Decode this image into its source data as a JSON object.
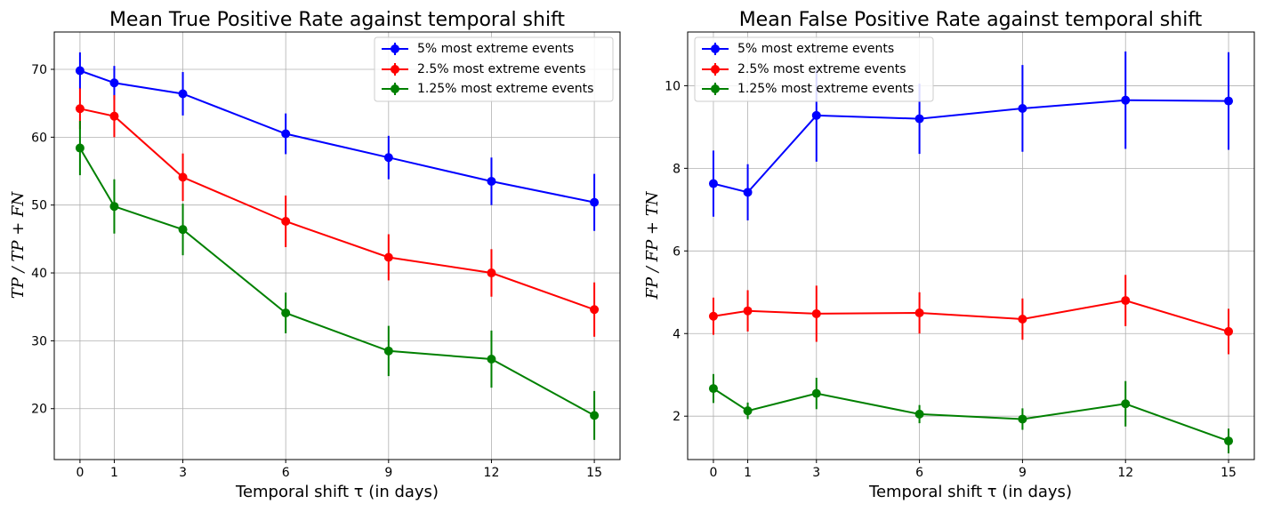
{
  "chart_data": [
    {
      "type": "line",
      "title": "Mean True Positive Rate against temporal shift",
      "xlabel": "Temporal shift τ (in days)",
      "ylabel": "TP / TP + FN",
      "x": [
        0,
        1,
        3,
        6,
        9,
        12,
        15
      ],
      "x_ticks": [
        "0",
        "1",
        "3",
        "6",
        "9",
        "12",
        "15"
      ],
      "xlim": [
        -0.75,
        15.75
      ],
      "ylim": [
        12.5,
        75.5
      ],
      "y_ticks": [
        20,
        30,
        40,
        50,
        60,
        70
      ],
      "grid": true,
      "legend": "top-right",
      "series": [
        {
          "name": "5% most extreme events",
          "color": "#0000ff",
          "values": [
            69.8,
            68.0,
            66.4,
            60.5,
            57.0,
            53.5,
            50.4
          ],
          "errors": [
            2.7,
            2.5,
            3.2,
            3.0,
            3.2,
            3.5,
            4.2
          ]
        },
        {
          "name": "2.5% most extreme events",
          "color": "#ff0000",
          "values": [
            64.2,
            63.1,
            54.1,
            47.6,
            42.3,
            40.0,
            34.6
          ],
          "errors": [
            3.0,
            3.1,
            3.5,
            3.8,
            3.4,
            3.5,
            4.0
          ]
        },
        {
          "name": "1.25% most extreme events",
          "color": "#008000",
          "values": [
            58.4,
            49.8,
            46.4,
            34.1,
            28.5,
            27.3,
            19.0
          ],
          "errors": [
            4.0,
            4.0,
            3.8,
            3.0,
            3.7,
            4.2,
            3.6
          ]
        }
      ]
    },
    {
      "type": "line",
      "title": "Mean False Positive Rate against temporal shift",
      "xlabel": "Temporal shift τ (in days)",
      "ylabel": "FP / FP + TN",
      "x": [
        0,
        1,
        3,
        6,
        9,
        12,
        15
      ],
      "x_ticks": [
        "0",
        "1",
        "3",
        "6",
        "9",
        "12",
        "15"
      ],
      "xlim": [
        -0.75,
        15.75
      ],
      "ylim": [
        0.95,
        11.3
      ],
      "y_ticks": [
        2,
        4,
        6,
        8,
        10
      ],
      "grid": true,
      "legend": "top-left",
      "series": [
        {
          "name": "5% most extreme events",
          "color": "#0000ff",
          "values": [
            7.63,
            7.42,
            9.28,
            9.2,
            9.45,
            9.65,
            9.63
          ],
          "errors": [
            0.8,
            0.68,
            1.12,
            0.85,
            1.05,
            1.18,
            1.18
          ]
        },
        {
          "name": "2.5% most extreme events",
          "color": "#ff0000",
          "values": [
            4.42,
            4.55,
            4.48,
            4.5,
            4.35,
            4.8,
            4.05
          ],
          "errors": [
            0.45,
            0.5,
            0.68,
            0.5,
            0.5,
            0.62,
            0.55
          ]
        },
        {
          "name": "1.25% most extreme events",
          "color": "#008000",
          "values": [
            2.67,
            2.13,
            2.55,
            2.05,
            1.93,
            2.3,
            1.4
          ],
          "errors": [
            0.35,
            0.2,
            0.38,
            0.22,
            0.26,
            0.55,
            0.3
          ]
        }
      ]
    }
  ]
}
